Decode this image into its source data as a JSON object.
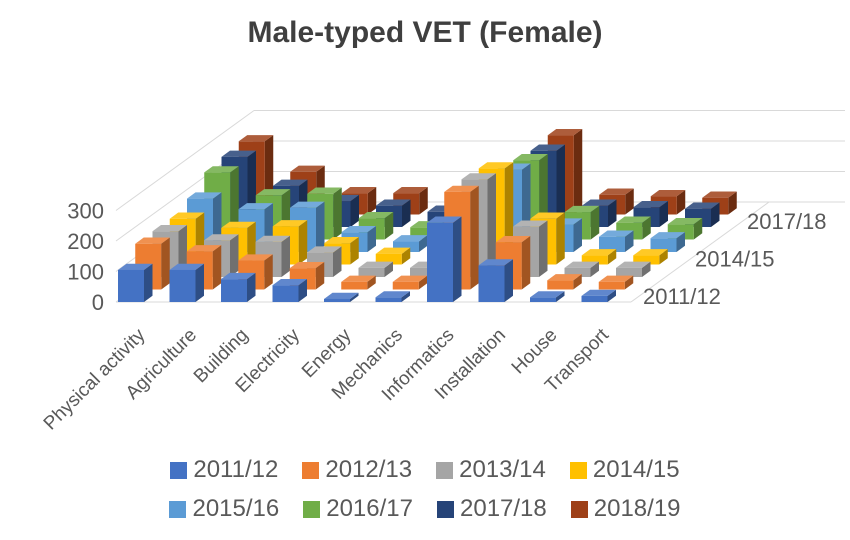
{
  "title": "Male-typed VET (Female)",
  "chart_data": {
    "type": "bar",
    "projection": "3d-column",
    "title": "Male-typed VET (Female)",
    "categories": [
      "Physical activity",
      "Agriculture",
      "Building",
      "Electricity",
      "Energy",
      "Mechanics",
      "Informatics",
      "Installation",
      "House",
      "Transport"
    ],
    "series": [
      {
        "name": "2011/12",
        "color": "#4472C4",
        "values": [
          105,
          105,
          75,
          55,
          10,
          15,
          260,
          120,
          15,
          20
        ]
      },
      {
        "name": "2012/13",
        "color": "#ED7D31",
        "values": [
          150,
          125,
          95,
          70,
          25,
          25,
          320,
          155,
          30,
          25
        ]
      },
      {
        "name": "2013/14",
        "color": "#A5A5A5",
        "values": [
          150,
          120,
          115,
          80,
          30,
          30,
          320,
          165,
          30,
          30
        ]
      },
      {
        "name": "2014/15",
        "color": "#FFC000",
        "values": [
          150,
          120,
          125,
          70,
          35,
          30,
          315,
          150,
          30,
          30
        ]
      },
      {
        "name": "2015/16",
        "color": "#5B9BD5",
        "values": [
          175,
          140,
          145,
          65,
          35,
          40,
          270,
          90,
          50,
          45
        ]
      },
      {
        "name": "2016/17",
        "color": "#70AD47",
        "values": [
          220,
          145,
          150,
          70,
          40,
          45,
          260,
          90,
          55,
          50
        ]
      },
      {
        "name": "2017/18",
        "color": "#264478",
        "values": [
          230,
          135,
          85,
          70,
          50,
          55,
          250,
          70,
          65,
          60
        ]
      },
      {
        "name": "2018/19",
        "color": "#9E4018",
        "values": [
          240,
          140,
          70,
          70,
          50,
          55,
          260,
          65,
          60,
          55
        ]
      }
    ],
    "y_axis": {
      "ticks": [
        0,
        100,
        200,
        300
      ],
      "ylim": [
        0,
        300
      ]
    },
    "depth_axis_labels": [
      "2011/12",
      "2014/15",
      "2017/18"
    ],
    "legend_position": "bottom",
    "grid": true,
    "text_color": "#595959",
    "grid_color": "#D9D9D9",
    "title_color": "#3F3F3F"
  }
}
